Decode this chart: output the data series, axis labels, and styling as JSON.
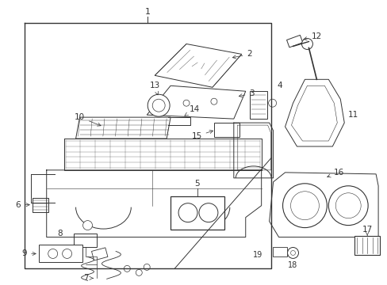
{
  "bg_color": "#ffffff",
  "line_color": "#333333",
  "fig_width": 4.89,
  "fig_height": 3.6,
  "dpi": 100,
  "label_fs": 7.5,
  "lw": 0.7
}
